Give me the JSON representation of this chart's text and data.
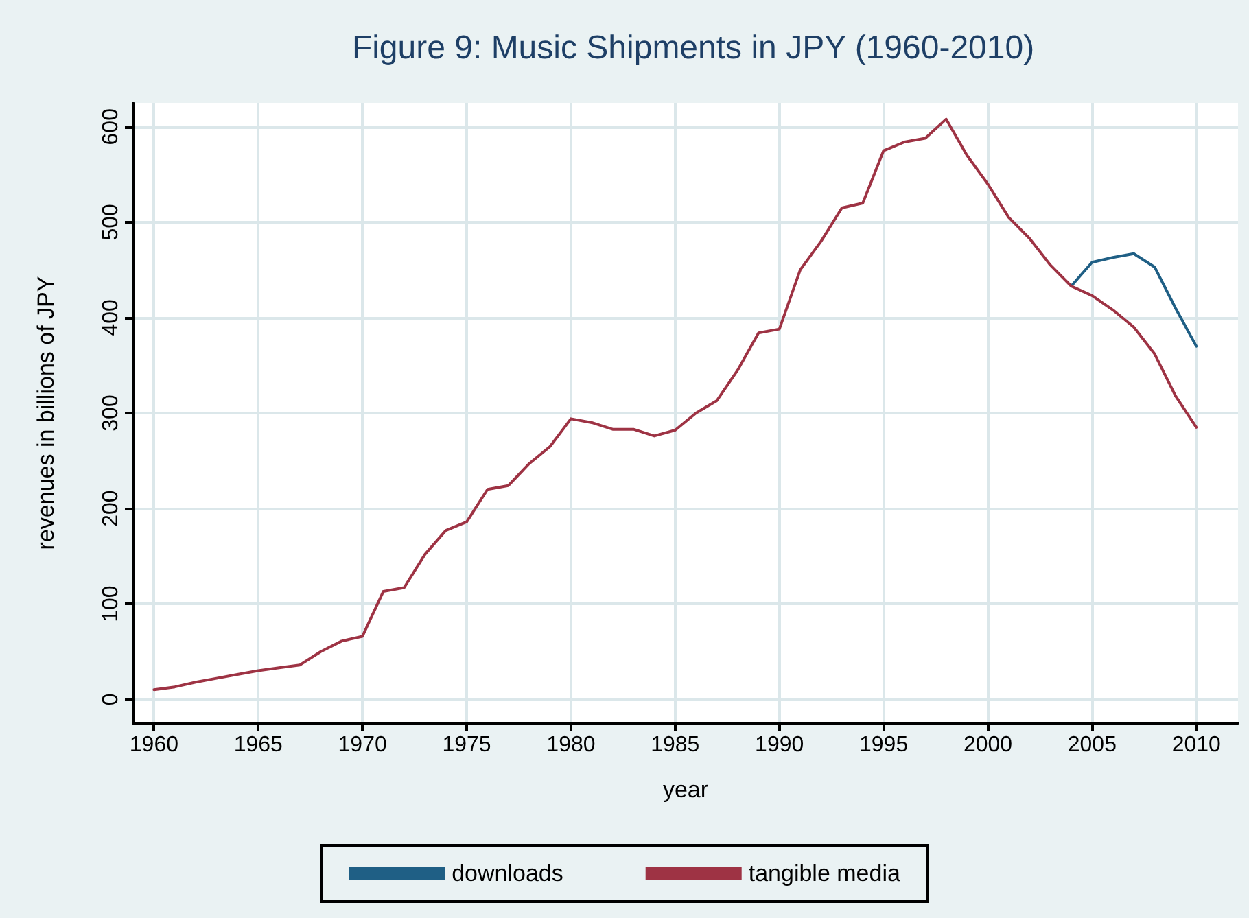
{
  "chart_data": {
    "type": "line",
    "title": "Figure 9: Music Shipments in JPY (1960-2010)",
    "xlabel": "year",
    "ylabel": "revenues in billions of JPY",
    "x": [
      1960,
      1961,
      1962,
      1963,
      1964,
      1965,
      1966,
      1967,
      1968,
      1969,
      1970,
      1971,
      1972,
      1973,
      1974,
      1975,
      1976,
      1977,
      1978,
      1979,
      1980,
      1981,
      1982,
      1983,
      1984,
      1985,
      1986,
      1987,
      1988,
      1989,
      1990,
      1991,
      1992,
      1993,
      1994,
      1995,
      1996,
      1997,
      1998,
      1999,
      2000,
      2001,
      2002,
      2003,
      2004,
      2005,
      2006,
      2007,
      2008,
      2009,
      2010
    ],
    "series": [
      {
        "name": "downloads",
        "color": "#1f5f85",
        "x": [
          2004,
          2005,
          2006,
          2007,
          2008,
          2009,
          2010
        ],
        "values": [
          433,
          458,
          463,
          467,
          453,
          410,
          370
        ]
      },
      {
        "name": "tangible media",
        "color": "#9e3344",
        "values": [
          10,
          13,
          18,
          22,
          26,
          30,
          33,
          36,
          50,
          61,
          66,
          113,
          117,
          152,
          177,
          186,
          220,
          224,
          247,
          265,
          294,
          290,
          283,
          283,
          276,
          282,
          300,
          313,
          345,
          384,
          388,
          450,
          480,
          515,
          520,
          575,
          584,
          588,
          608,
          570,
          540,
          505,
          483,
          455,
          433,
          423,
          408,
          390,
          362,
          318,
          285
        ]
      }
    ],
    "xlim": [
      1959,
      2012
    ],
    "xticks": [
      1960,
      1965,
      1970,
      1975,
      1980,
      1985,
      1990,
      1995,
      2000,
      2005,
      2010
    ],
    "ylim": [
      -25,
      625
    ],
    "yticks": [
      0,
      100,
      200,
      300,
      400,
      500,
      600
    ],
    "grid": true,
    "legend": "bottom",
    "marker": "none",
    "line_style": "solid"
  }
}
